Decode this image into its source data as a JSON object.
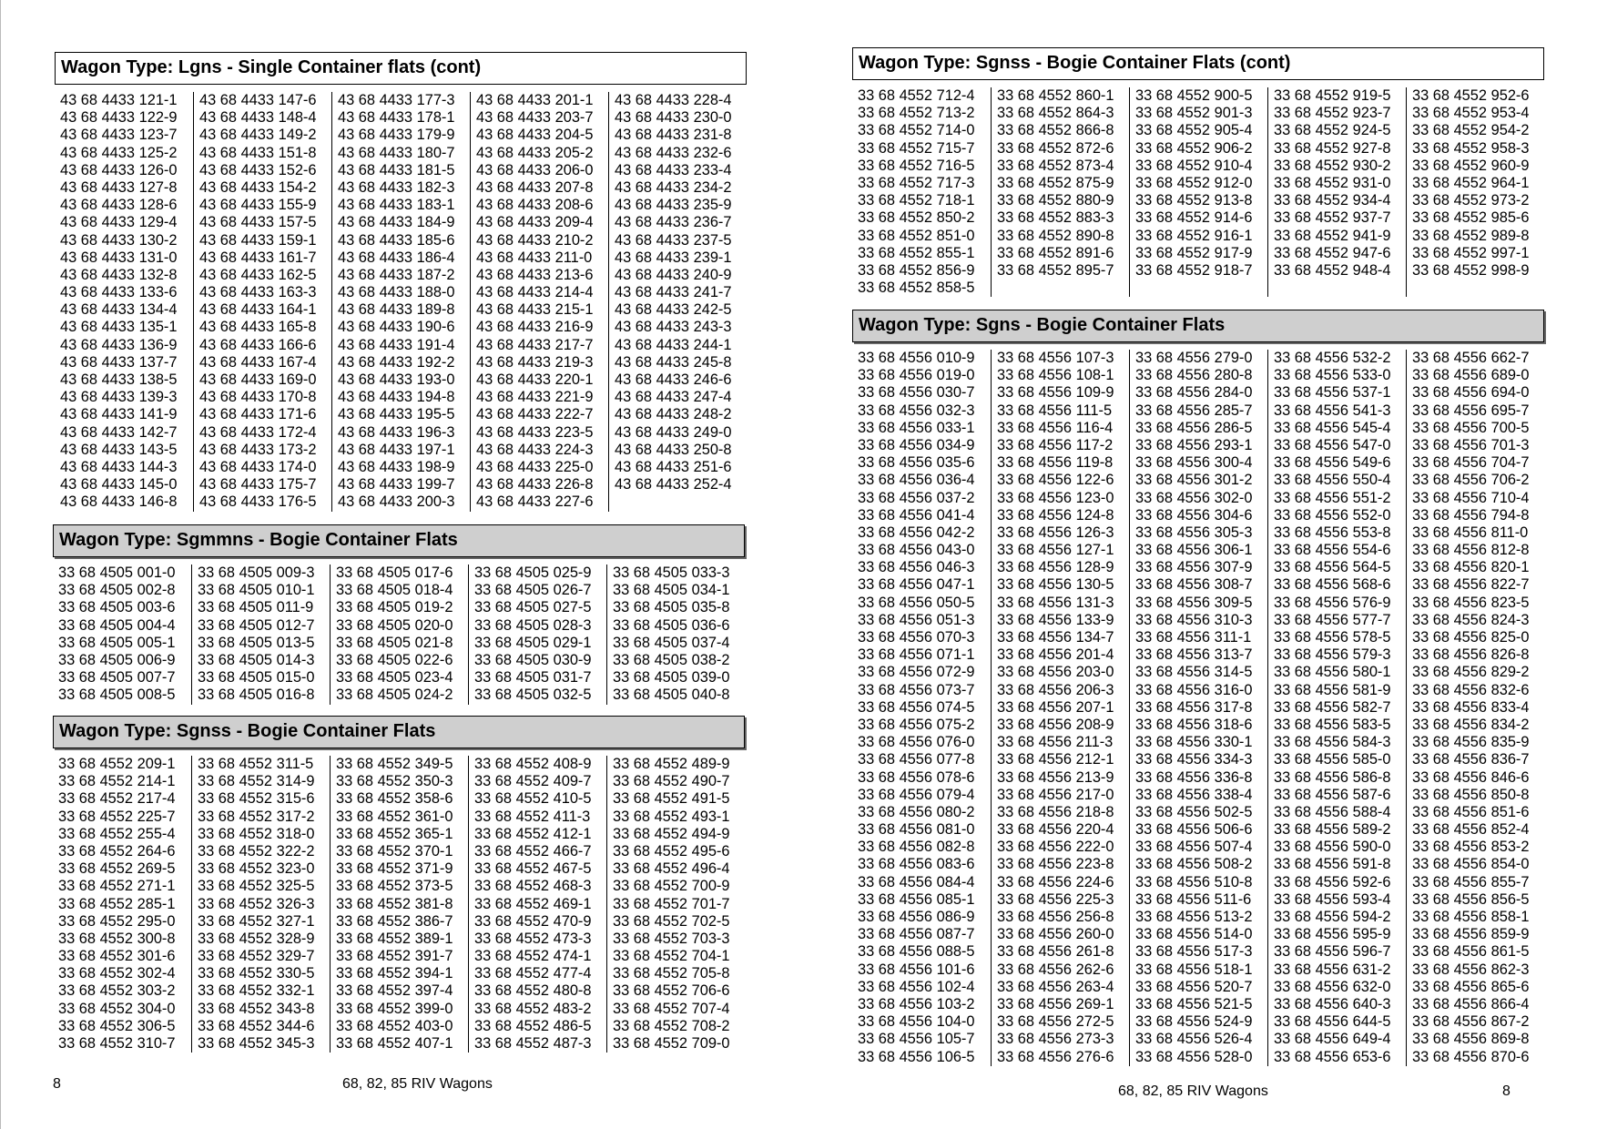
{
  "left_page": {
    "sections": [
      {
        "title": "Wagon Type: Lgns - Single Container flats (cont)",
        "style": "white",
        "prefix": "43 68 4433",
        "columns": [
          [
            "121-1",
            "122-9",
            "123-7",
            "125-2",
            "126-0",
            "127-8",
            "128-6",
            "129-4",
            "130-2",
            "131-0",
            "132-8",
            "133-6",
            "134-4",
            "135-1",
            "136-9",
            "137-7",
            "138-5",
            "139-3",
            "141-9",
            "142-7",
            "143-5",
            "144-3",
            "145-0",
            "146-8"
          ],
          [
            "147-6",
            "148-4",
            "149-2",
            "151-8",
            "152-6",
            "154-2",
            "155-9",
            "157-5",
            "159-1",
            "161-7",
            "162-5",
            "163-3",
            "164-1",
            "165-8",
            "166-6",
            "167-4",
            "169-0",
            "170-8",
            "171-6",
            "172-4",
            "173-2",
            "174-0",
            "175-7",
            "176-5"
          ],
          [
            "177-3",
            "178-1",
            "179-9",
            "180-7",
            "181-5",
            "182-3",
            "183-1",
            "184-9",
            "185-6",
            "186-4",
            "187-2",
            "188-0",
            "189-8",
            "190-6",
            "191-4",
            "192-2",
            "193-0",
            "194-8",
            "195-5",
            "196-3",
            "197-1",
            "198-9",
            "199-7",
            "200-3"
          ],
          [
            "201-1",
            "203-7",
            "204-5",
            "205-2",
            "206-0",
            "207-8",
            "208-6",
            "209-4",
            "210-2",
            "211-0",
            "213-6",
            "214-4",
            "215-1",
            "216-9",
            "217-7",
            "219-3",
            "220-1",
            "221-9",
            "222-7",
            "223-5",
            "224-3",
            "225-0",
            "226-8",
            "227-6"
          ],
          [
            "228-4",
            "230-0",
            "231-8",
            "232-6",
            "233-4",
            "234-2",
            "235-9",
            "236-7",
            "237-5",
            "239-1",
            "240-9",
            "241-7",
            "242-5",
            "243-3",
            "244-1",
            "245-8",
            "246-6",
            "247-4",
            "248-2",
            "249-0",
            "250-8",
            "251-6",
            "252-4"
          ]
        ]
      },
      {
        "title": "Wagon Type: Sgmmns - Bogie Container Flats",
        "style": "grey",
        "prefix": "33 68 4505",
        "columns": [
          [
            "001-0",
            "002-8",
            "003-6",
            "004-4",
            "005-1",
            "006-9",
            "007-7",
            "008-5"
          ],
          [
            "009-3",
            "010-1",
            "011-9",
            "012-7",
            "013-5",
            "014-3",
            "015-0",
            "016-8"
          ],
          [
            "017-6",
            "018-4",
            "019-2",
            "020-0",
            "021-8",
            "022-6",
            "023-4",
            "024-2"
          ],
          [
            "025-9",
            "026-7",
            "027-5",
            "028-3",
            "029-1",
            "030-9",
            "031-7",
            "032-5"
          ],
          [
            "033-3",
            "034-1",
            "035-8",
            "036-6",
            "037-4",
            "038-2",
            "039-0",
            "040-8"
          ]
        ]
      },
      {
        "title": "Wagon Type: Sgnss - Bogie Container Flats",
        "style": "grey",
        "prefix": "33 68 4552",
        "columns": [
          [
            "209-1",
            "214-1",
            "217-4",
            "225-7",
            "255-4",
            "264-6",
            "269-5",
            "271-1",
            "285-1",
            "295-0",
            "300-8",
            "301-6",
            "302-4",
            "303-2",
            "304-0",
            "306-5",
            "310-7"
          ],
          [
            "311-5",
            "314-9",
            "315-6",
            "317-2",
            "318-0",
            "322-2",
            "323-0",
            "325-5",
            "326-3",
            "327-1",
            "328-9",
            "329-7",
            "330-5",
            "332-1",
            "343-8",
            "344-6",
            "345-3"
          ],
          [
            "349-5",
            "350-3",
            "358-6",
            "361-0",
            "365-1",
            "370-1",
            "371-9",
            "373-5",
            "381-8",
            "386-7",
            "389-1",
            "391-7",
            "394-1",
            "397-4",
            "399-0",
            "403-0",
            "407-1"
          ],
          [
            "408-9",
            "409-7",
            "410-5",
            "411-3",
            "412-1",
            "466-7",
            "467-5",
            "468-3",
            "469-1",
            "470-9",
            "473-3",
            "474-1",
            "477-4",
            "480-8",
            "483-2",
            "486-5",
            "487-3"
          ],
          [
            "489-9",
            "490-7",
            "491-5",
            "493-1",
            "494-9",
            "495-6",
            "496-4",
            "700-9",
            "701-7",
            "702-5",
            "703-3",
            "704-1",
            "705-8",
            "706-6",
            "707-4",
            "708-2",
            "709-0"
          ]
        ]
      }
    ],
    "footer": {
      "page_number": "8",
      "title": "68, 82, 85 RIV Wagons"
    }
  },
  "right_page": {
    "sections": [
      {
        "title": "Wagon Type: Sgnss - Bogie Container Flats (cont)",
        "style": "white",
        "prefix": "33 68 4552",
        "columns": [
          [
            "712-4",
            "713-2",
            "714-0",
            "715-7",
            "716-5",
            "717-3",
            "718-1",
            "850-2",
            "851-0",
            "855-1",
            "856-9",
            "858-5"
          ],
          [
            "860-1",
            "864-3",
            "866-8",
            "872-6",
            "873-4",
            "875-9",
            "880-9",
            "883-3",
            "890-8",
            "891-6",
            "895-7"
          ],
          [
            "900-5",
            "901-3",
            "905-4",
            "906-2",
            "910-4",
            "912-0",
            "913-8",
            "914-6",
            "916-1",
            "917-9",
            "918-7"
          ],
          [
            "919-5",
            "923-7",
            "924-5",
            "927-8",
            "930-2",
            "931-0",
            "934-4",
            "937-7",
            "941-9",
            "947-6",
            "948-4"
          ],
          [
            "952-6",
            "953-4",
            "954-2",
            "958-3",
            "960-9",
            "964-1",
            "973-2",
            "985-6",
            "989-8",
            "997-1",
            "998-9"
          ]
        ]
      },
      {
        "title": "Wagon Type: Sgns - Bogie Container Flats",
        "style": "grey",
        "prefix": "33 68 4556",
        "columns": [
          [
            "010-9",
            "019-0",
            "030-7",
            "032-3",
            "033-1",
            "034-9",
            "035-6",
            "036-4",
            "037-2",
            "041-4",
            "042-2",
            "043-0",
            "046-3",
            "047-1",
            "050-5",
            "051-3",
            "070-3",
            "071-1",
            "072-9",
            "073-7",
            "074-5",
            "075-2",
            "076-0",
            "077-8",
            "078-6",
            "079-4",
            "080-2",
            "081-0",
            "082-8",
            "083-6",
            "084-4",
            "085-1",
            "086-9",
            "087-7",
            "088-5",
            "101-6",
            "102-4",
            "103-2",
            "104-0",
            "105-7",
            "106-5"
          ],
          [
            "107-3",
            "108-1",
            "109-9",
            "111-5",
            "116-4",
            "117-2",
            "119-8",
            "122-6",
            "123-0",
            "124-8",
            "126-3",
            "127-1",
            "128-9",
            "130-5",
            "131-3",
            "133-9",
            "134-7",
            "201-4",
            "203-0",
            "206-3",
            "207-1",
            "208-9",
            "211-3",
            "212-1",
            "213-9",
            "217-0",
            "218-8",
            "220-4",
            "222-0",
            "223-8",
            "224-6",
            "225-3",
            "256-8",
            "260-0",
            "261-8",
            "262-6",
            "263-4",
            "269-1",
            "272-5",
            "273-3",
            "276-6"
          ],
          [
            "279-0",
            "280-8",
            "284-0",
            "285-7",
            "286-5",
            "293-1",
            "300-4",
            "301-2",
            "302-0",
            "304-6",
            "305-3",
            "306-1",
            "307-9",
            "308-7",
            "309-5",
            "310-3",
            "311-1",
            "313-7",
            "314-5",
            "316-0",
            "317-8",
            "318-6",
            "330-1",
            "334-3",
            "336-8",
            "338-4",
            "502-5",
            "506-6",
            "507-4",
            "508-2",
            "510-8",
            "511-6",
            "513-2",
            "514-0",
            "517-3",
            "518-1",
            "520-7",
            "521-5",
            "524-9",
            "526-4",
            "528-0"
          ],
          [
            "532-2",
            "533-0",
            "537-1",
            "541-3",
            "545-4",
            "547-0",
            "549-6",
            "550-4",
            "551-2",
            "552-0",
            "553-8",
            "554-6",
            "564-5",
            "568-6",
            "576-9",
            "577-7",
            "578-5",
            "579-3",
            "580-1",
            "581-9",
            "582-7",
            "583-5",
            "584-3",
            "585-0",
            "586-8",
            "587-6",
            "588-4",
            "589-2",
            "590-0",
            "591-8",
            "592-6",
            "593-4",
            "594-2",
            "595-9",
            "596-7",
            "631-2",
            "632-0",
            "640-3",
            "644-5",
            "649-4",
            "653-6"
          ],
          [
            "662-7",
            "689-0",
            "694-0",
            "695-7",
            "700-5",
            "701-3",
            "704-7",
            "706-2",
            "710-4",
            "794-8",
            "811-0",
            "812-8",
            "820-1",
            "822-7",
            "823-5",
            "824-3",
            "825-0",
            "826-8",
            "829-2",
            "832-6",
            "833-4",
            "834-2",
            "835-9",
            "836-7",
            "846-6",
            "850-8",
            "851-6",
            "852-4",
            "853-2",
            "854-0",
            "855-7",
            "856-5",
            "858-1",
            "859-9",
            "861-5",
            "862-3",
            "865-6",
            "866-4",
            "867-2",
            "869-8",
            "870-6"
          ]
        ]
      }
    ],
    "footer": {
      "page_number": "8",
      "title": "68, 82, 85 RIV Wagons"
    }
  }
}
